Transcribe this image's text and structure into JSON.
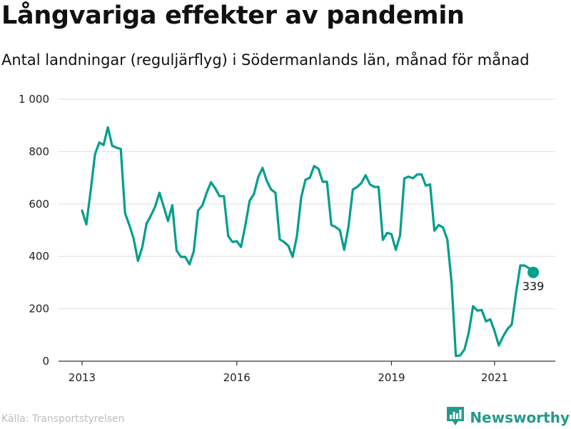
{
  "title": "Långvariga effekter av pandemin",
  "subtitle": "Antal landningar (reguljärflyg) i Södermanlands län, månad för månad",
  "source": "Källa: Transportstyrelsen",
  "brand": {
    "name": "Newsworthy",
    "logo_icon": "bar-chart-logo-icon"
  },
  "colors": {
    "line": "#009e8c",
    "grid": "#dddddd",
    "axis": "#333333",
    "source_text": "#bdbdbd",
    "brand": "#239b8c"
  },
  "chart_data": {
    "type": "line",
    "title": "Långvariga effekter av pandemin",
    "subtitle": "Antal landningar (reguljärflyg) i Södermanlands län, månad för månad",
    "xlabel": "",
    "ylabel": "",
    "x_start": "2013-01",
    "x_interval": "month",
    "ylim": [
      0,
      1000
    ],
    "grid": true,
    "yticks": [
      0,
      200,
      400,
      600,
      800,
      1000
    ],
    "ytick_labels": [
      "0",
      "200",
      "400",
      "600",
      "800",
      "1 000"
    ],
    "xtick_labels": [
      "2013",
      "2016",
      "2019",
      "2021"
    ],
    "series": [
      {
        "values": [
          575,
          522,
          650,
          790,
          835,
          825,
          893,
          823,
          815,
          810,
          565,
          520,
          468,
          383,
          435,
          525,
          555,
          590,
          643,
          590,
          535,
          595,
          423,
          398,
          398,
          370,
          420,
          575,
          595,
          643,
          683,
          660,
          630,
          630,
          478,
          455,
          458,
          436,
          520,
          613,
          638,
          703,
          738,
          688,
          655,
          643,
          465,
          455,
          440,
          398,
          478,
          625,
          693,
          700,
          745,
          735,
          685,
          685,
          520,
          512,
          500,
          425,
          512,
          655,
          665,
          680,
          710,
          675,
          665,
          665,
          463,
          490,
          485,
          425,
          480,
          698,
          705,
          698,
          713,
          713,
          670,
          675,
          498,
          520,
          510,
          465,
          300,
          20,
          22,
          45,
          110,
          210,
          193,
          195,
          152,
          160,
          115,
          60,
          95,
          123,
          140,
          260,
          365,
          365,
          355,
          339
        ]
      }
    ],
    "annotations": [
      {
        "x": "2021-10",
        "y": 339,
        "label": "339"
      }
    ]
  }
}
